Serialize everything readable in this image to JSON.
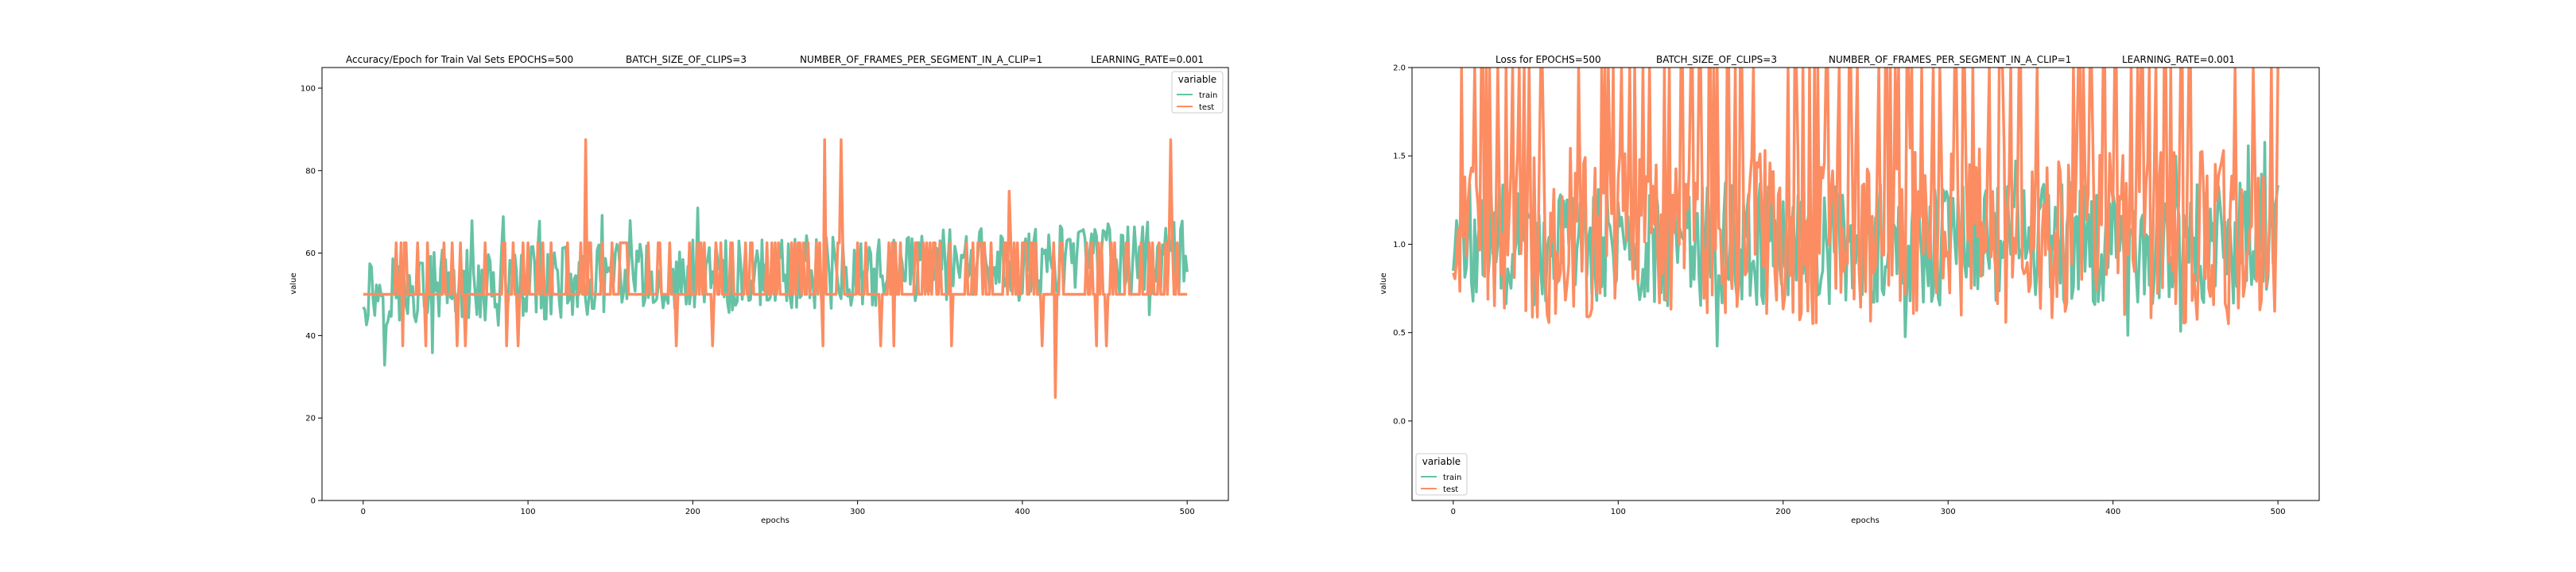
{
  "chart_data": [
    {
      "type": "line",
      "title_parts": [
        "Accuracy/Epoch for Train Val Sets EPOCHS=500",
        "BATCH_SIZE_OF_CLIPS=3",
        "NUMBER_OF_FRAMES_PER_SEGMENT_IN_A_CLIP=1",
        "LEARNING_RATE=0.001"
      ],
      "xlabel": "epochs",
      "ylabel": "value",
      "xlim": [
        -25,
        525
      ],
      "ylim": [
        0,
        105
      ],
      "xticks": [
        0,
        100,
        200,
        300,
        400,
        500
      ],
      "yticks": [
        0,
        20,
        40,
        60,
        80,
        100
      ],
      "grid": false,
      "legend": {
        "title": "variable",
        "placement": "top-right",
        "entries": [
          "train",
          "test"
        ]
      },
      "series": [
        {
          "name": "train",
          "color": "#66c2a5",
          "kind": "noisy",
          "stats": {
            "base": 51,
            "trend": 8,
            "amp": 9,
            "min": 27,
            "max": 87
          }
        },
        {
          "name": "test",
          "color": "#fc8d62",
          "kind": "quantized",
          "stats": {
            "levels": [
              25,
              37.5,
              50,
              62.5,
              75,
              87.5
            ],
            "base_level": 50
          }
        }
      ]
    },
    {
      "type": "line",
      "title_parts": [
        "Loss for  EPOCHS=500",
        "BATCH_SIZE_OF_CLIPS=3",
        "NUMBER_OF_FRAMES_PER_SEGMENT_IN_A_CLIP=1",
        "LEARNING_RATE=0.001"
      ],
      "xlabel": "epochs",
      "ylabel": "value",
      "xlim": [
        -25,
        525
      ],
      "ylim": [
        -0.45,
        2.0
      ],
      "xticks": [
        0,
        100,
        200,
        300,
        400,
        500
      ],
      "yticks": [
        0.0,
        0.5,
        1.0,
        1.5,
        2.0
      ],
      "grid": false,
      "legend": {
        "title": "variable",
        "placement": "bottom-left",
        "entries": [
          "train",
          "test"
        ]
      },
      "series": [
        {
          "name": "train",
          "color": "#66c2a5",
          "kind": "noisy",
          "stats": {
            "base": 1.0,
            "trend": 0,
            "amp": 0.35,
            "min": 0.3,
            "max": 2.0
          }
        },
        {
          "name": "test",
          "color": "#fc8d62",
          "kind": "spiky",
          "stats": {
            "base": 1.05,
            "amp": 0.5,
            "min": 0.33,
            "max": 2.0
          }
        }
      ]
    }
  ]
}
